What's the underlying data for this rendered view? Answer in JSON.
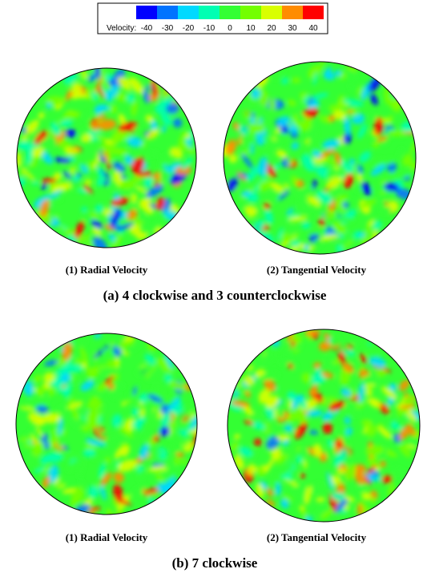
{
  "colorbar": {
    "label": "Velocity:",
    "ticks": [
      -40,
      -30,
      -20,
      -10,
      0,
      10,
      20,
      30,
      40
    ],
    "colors": [
      "#0000ff",
      "#0073ff",
      "#00d9ff",
      "#00ffb3",
      "#33ff33",
      "#73ff00",
      "#d9ff00",
      "#ff8c00",
      "#ff0000"
    ]
  },
  "panels": [
    {
      "caption": "(a) 4 clockwise and 3 counterclockwise",
      "plots": [
        {
          "label": "(1) Radial Velocity"
        },
        {
          "label": "(2) Tangential Velocity"
        }
      ]
    },
    {
      "caption": "(b) 7 clockwise",
      "plots": [
        {
          "label": "(1) Radial Velocity"
        },
        {
          "label": "(2) Tangential Velocity"
        }
      ]
    }
  ]
}
